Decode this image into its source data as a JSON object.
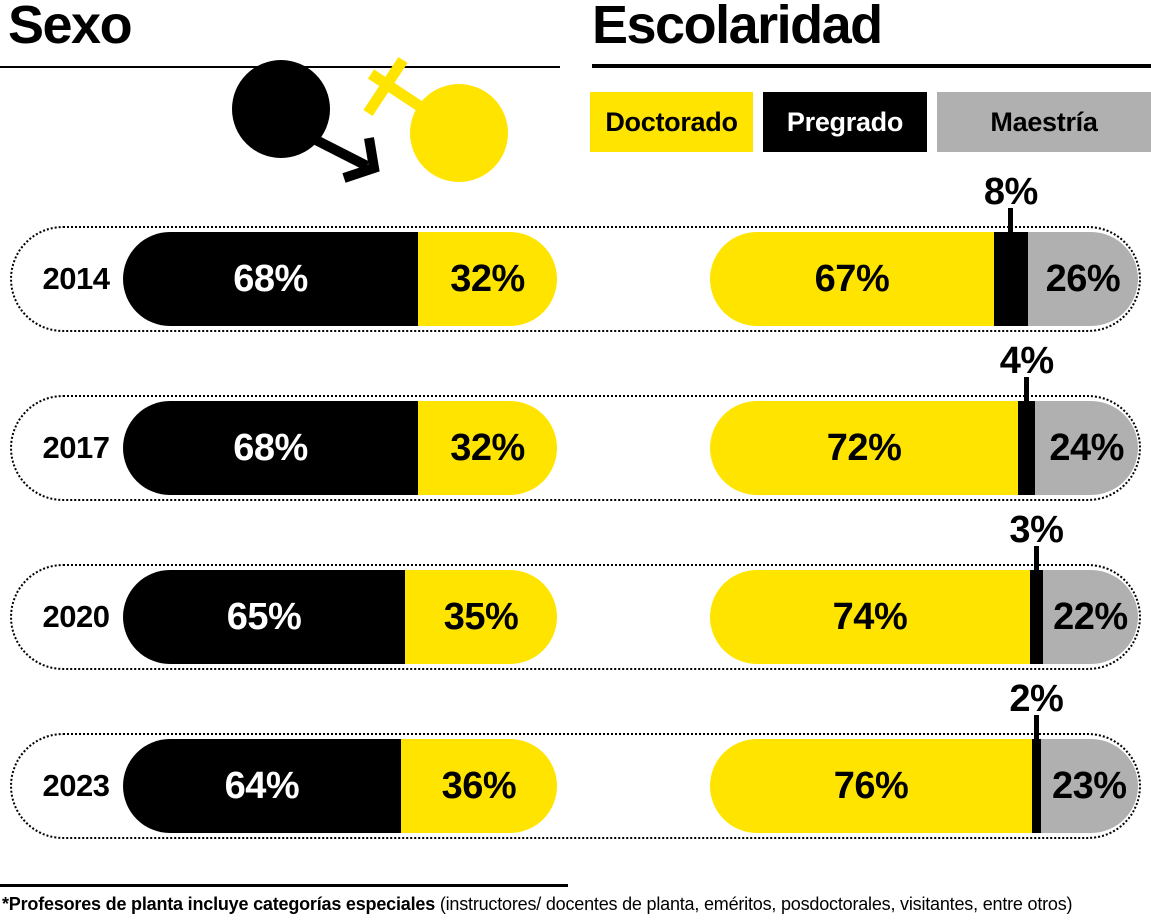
{
  "titles": {
    "sexo": "Sexo",
    "escolaridad": "Escolaridad"
  },
  "colors": {
    "yellow": "#FFE400",
    "black": "#000000",
    "gray": "#B0B0B0",
    "white": "#FFFFFF"
  },
  "icons": {
    "male": "male-gender-symbol",
    "female": "female-gender-symbol"
  },
  "legend": [
    {
      "label": "Doctorado",
      "color": "yellow"
    },
    {
      "label": "Pregrado",
      "color": "black"
    },
    {
      "label": "Maestría",
      "color": "gray"
    }
  ],
  "rows": [
    {
      "year": "2014",
      "sexo": {
        "segments": [
          {
            "name": "male",
            "label": "68%",
            "value": 68,
            "color": "black"
          },
          {
            "name": "female",
            "label": "32%",
            "value": 32,
            "color": "yellow"
          }
        ]
      },
      "escolaridad": {
        "segments": [
          {
            "name": "doctorado",
            "label": "67%",
            "value": 67,
            "color": "yellow"
          },
          {
            "name": "pregrado",
            "label": "8%",
            "value": 8,
            "color": "black",
            "label_position": "above"
          },
          {
            "name": "maestria",
            "label": "26%",
            "value": 26,
            "color": "gray"
          }
        ]
      }
    },
    {
      "year": "2017",
      "sexo": {
        "segments": [
          {
            "name": "male",
            "label": "68%",
            "value": 68,
            "color": "black"
          },
          {
            "name": "female",
            "label": "32%",
            "value": 32,
            "color": "yellow"
          }
        ]
      },
      "escolaridad": {
        "segments": [
          {
            "name": "doctorado",
            "label": "72%",
            "value": 72,
            "color": "yellow"
          },
          {
            "name": "pregrado",
            "label": "4%",
            "value": 4,
            "color": "black",
            "label_position": "above"
          },
          {
            "name": "maestria",
            "label": "24%",
            "value": 24,
            "color": "gray"
          }
        ]
      }
    },
    {
      "year": "2020",
      "sexo": {
        "segments": [
          {
            "name": "male",
            "label": "65%",
            "value": 65,
            "color": "black"
          },
          {
            "name": "female",
            "label": "35%",
            "value": 35,
            "color": "yellow"
          }
        ]
      },
      "escolaridad": {
        "segments": [
          {
            "name": "doctorado",
            "label": "74%",
            "value": 74,
            "color": "yellow"
          },
          {
            "name": "pregrado",
            "label": "3%",
            "value": 3,
            "color": "black",
            "label_position": "above"
          },
          {
            "name": "maestria",
            "label": "22%",
            "value": 22,
            "color": "gray"
          }
        ]
      }
    },
    {
      "year": "2023",
      "sexo": {
        "segments": [
          {
            "name": "male",
            "label": "64%",
            "value": 64,
            "color": "black"
          },
          {
            "name": "female",
            "label": "36%",
            "value": 36,
            "color": "yellow"
          }
        ]
      },
      "escolaridad": {
        "segments": [
          {
            "name": "doctorado",
            "label": "76%",
            "value": 76,
            "color": "yellow"
          },
          {
            "name": "pregrado",
            "label": "2%",
            "value": 2,
            "color": "black",
            "label_position": "above"
          },
          {
            "name": "maestria",
            "label": "23%",
            "value": 23,
            "color": "gray"
          }
        ]
      }
    }
  ],
  "footnote": {
    "bold": "*Profesores de planta incluye categorías especiales",
    "regular": " (instructores/ docentes de planta, eméritos, posdoctorales, visitantes, entre otros)"
  },
  "chart_data": [
    {
      "type": "bar",
      "title": "Sexo",
      "orientation": "horizontal-stacked",
      "categories": [
        "2014",
        "2017",
        "2020",
        "2023"
      ],
      "series": [
        {
          "name": "Hombres (símbolo masculino, negro)",
          "color": "#000000",
          "values": [
            68,
            68,
            65,
            64
          ]
        },
        {
          "name": "Mujeres (símbolo femenino, amarillo)",
          "color": "#FFE400",
          "values": [
            32,
            32,
            35,
            36
          ]
        }
      ],
      "unit": "%",
      "xlim": [
        0,
        100
      ],
      "grid": false,
      "legend_position": "icons-top"
    },
    {
      "type": "bar",
      "title": "Escolaridad",
      "orientation": "horizontal-stacked",
      "categories": [
        "2014",
        "2017",
        "2020",
        "2023"
      ],
      "series": [
        {
          "name": "Doctorado",
          "color": "#FFE400",
          "values": [
            67,
            72,
            74,
            76
          ]
        },
        {
          "name": "Pregrado",
          "color": "#000000",
          "values": [
            8,
            4,
            3,
            2
          ]
        },
        {
          "name": "Maestría",
          "color": "#B0B0B0",
          "values": [
            26,
            24,
            22,
            23
          ]
        }
      ],
      "unit": "%",
      "xlim": [
        0,
        100
      ],
      "grid": false,
      "legend_position": "top"
    }
  ]
}
